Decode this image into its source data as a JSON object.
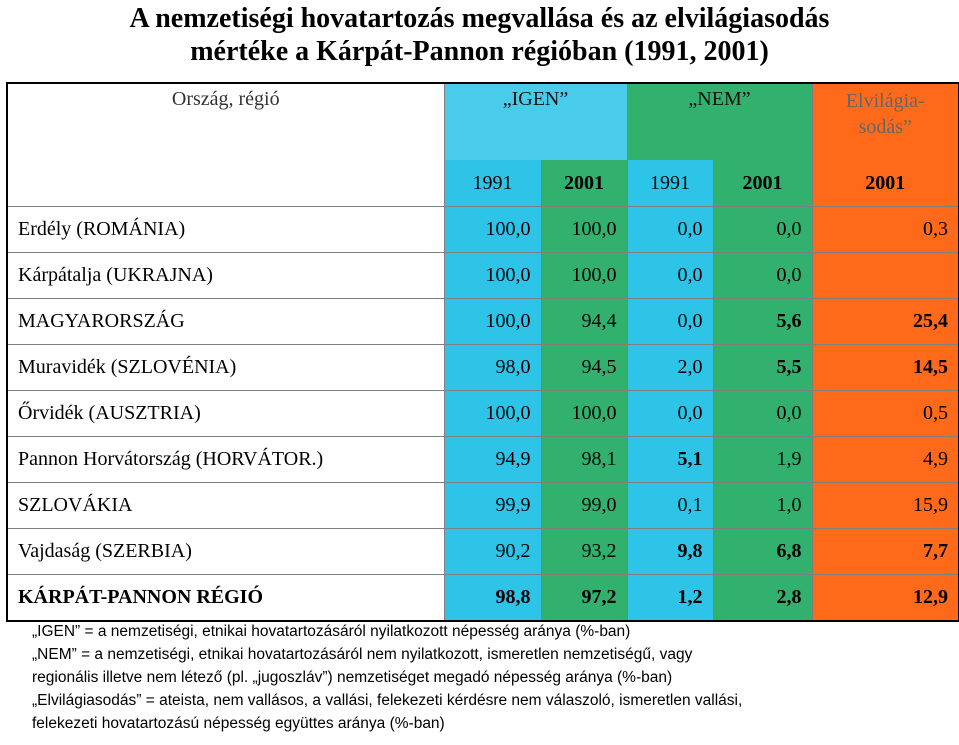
{
  "title": {
    "line1": "A nemzetiségi hovatartozás megvallása és az elvilágiasodás",
    "line2": "mértéke a Kárpát-Pannon régióban (1991, 2001)"
  },
  "header": {
    "region_label": "Ország, régió",
    "igen": "„IGEN”",
    "nem": "„NEM”",
    "elv_line1": "Elvilágia-",
    "elv_line2": "sodás”",
    "years": [
      "1991",
      "2001",
      "1991",
      "2001",
      "2001"
    ]
  },
  "rows": [
    {
      "region": "Erdély (ROMÁNIA)",
      "v": [
        "100,0",
        "100,0",
        "0,0",
        "0,0",
        "0,3"
      ]
    },
    {
      "region": "Kárpátalja (UKRAJNA)",
      "v": [
        "100,0",
        "100,0",
        "0,0",
        "0,0",
        ""
      ]
    },
    {
      "region": "MAGYARORSZÁG",
      "v": [
        "100,0",
        "94,4",
        "0,0",
        "5,6",
        "25,4"
      ]
    },
    {
      "region": "Muravidék (SZLOVÉNIA)",
      "v": [
        "98,0",
        "94,5",
        "2,0",
        "5,5",
        "14,5"
      ]
    },
    {
      "region": "Őrvidék (AUSZTRIA)",
      "v": [
        "100,0",
        "100,0",
        "0,0",
        "0,0",
        "0,5"
      ]
    },
    {
      "region": "Pannon Horvátország (HORVÁTOR.)",
      "v": [
        "94,9",
        "98,1",
        "5,1",
        "1,9",
        "4,9"
      ]
    },
    {
      "region": "SZLOVÁKIA",
      "v": [
        "99,9",
        "99,0",
        "0,1",
        "1,0",
        "15,9"
      ]
    },
    {
      "region": "Vajdaság (SZERBIA)",
      "v": [
        "90,2",
        "93,2",
        "9,8",
        "6,8",
        "7,7"
      ]
    },
    {
      "region": "KÁRPÁT-PANNON RÉGIÓ",
      "v": [
        "98,8",
        "97,2",
        "1,2",
        "2,8",
        "12,9"
      ]
    }
  ],
  "footnotes": [
    "„IGEN” = a nemzetiségi, etnikai hovatartozásáról nyilatkozott népesség aránya (%-ban)",
    "„NEM” = a nemzetiségi, etnikai hovatartozásáról nem nyilatkozott, ismeretlen nemzetiségű, vagy",
    "regionális illetve nem létező (pl. „jugoszláv”) nemzetiséget megadó népesség aránya (%-ban)",
    "„Elvilágiasodás” = ateista, nem vallásos, a vallási, felekezeti kérdésre nem válaszoló, ismeretlen vallási,",
    "felekezeti hovatartozású népesség együttes aránya (%-ban)"
  ],
  "colors": {
    "igen_1991": "#2ec4e8",
    "igen_2001": "#31b06e",
    "nem_1991": "#2ec4e8",
    "nem_2001": "#31b06e",
    "elvilagiasodas": "#ff6a1a"
  }
}
